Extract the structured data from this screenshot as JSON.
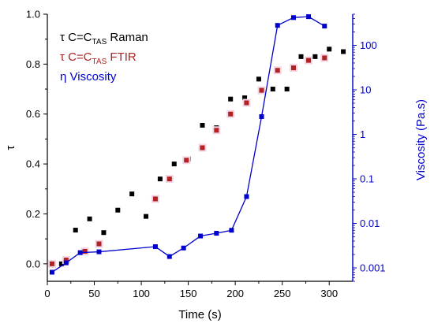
{
  "chart_data": {
    "type": "scatter",
    "xlabel": "Time (s)",
    "ylabel_left": "τ",
    "ylabel_right": "Viscosity (Pa.s)",
    "xlim": [
      0,
      325
    ],
    "ylim_left": [
      -0.07,
      1.0
    ],
    "ylim_right_log": [
      0.0005,
      500
    ],
    "x_ticks": [
      0,
      50,
      100,
      150,
      200,
      250,
      300
    ],
    "x_tick_labels": [
      "0",
      "50",
      "100",
      "150",
      "200",
      "250",
      "300"
    ],
    "y_left_ticks": [
      0.0,
      0.2,
      0.4,
      0.6,
      0.8,
      1.0
    ],
    "y_left_tick_labels": [
      "0.0",
      "0.2",
      "0.4",
      "0.6",
      "0.8",
      "1.0"
    ],
    "y_right_ticks": [
      0.001,
      0.01,
      0.1,
      1,
      10,
      100
    ],
    "y_right_tick_labels": [
      "0.001",
      "0.01",
      "0.1",
      "1",
      "10",
      "100"
    ],
    "legend_placement": "top-left",
    "legend": [
      {
        "prefix": "τ C=C",
        "sub": "TAS",
        "suffix": " Raman",
        "color": "#000000"
      },
      {
        "prefix": "τ C=C",
        "sub": "TAS",
        "suffix": " FTIR",
        "color": "#b22222"
      },
      {
        "prefix": "η Viscosity",
        "sub": "",
        "suffix": "",
        "color": "#0000cc"
      }
    ],
    "series": [
      {
        "name": "τ C=CTAS Raman",
        "axis": "left",
        "marker": "square",
        "color": "#000000",
        "x": [
          5,
          15,
          20,
          30,
          45,
          60,
          75,
          90,
          105,
          120,
          135,
          150,
          165,
          180,
          195,
          210,
          225,
          240,
          255,
          270,
          285,
          300,
          315
        ],
        "y": [
          0.0,
          0.0,
          0.02,
          0.135,
          0.18,
          0.125,
          0.215,
          0.28,
          0.19,
          0.34,
          0.4,
          0.42,
          0.555,
          0.545,
          0.66,
          0.665,
          0.74,
          0.7,
          0.7,
          0.83,
          0.83,
          0.86,
          0.85
        ]
      },
      {
        "name": "τ C=CTAS FTIR",
        "axis": "left",
        "marker": "square",
        "color": "#b22222",
        "x": [
          5,
          20,
          40,
          55,
          115,
          130,
          148,
          165,
          180,
          195,
          212,
          228,
          245,
          262,
          278,
          295
        ],
        "y": [
          0.0,
          0.015,
          0.05,
          0.08,
          0.26,
          0.34,
          0.415,
          0.465,
          0.535,
          0.6,
          0.645,
          0.695,
          0.775,
          0.785,
          0.815,
          0.825
        ]
      },
      {
        "name": "η Viscosity",
        "axis": "right_log",
        "marker": "square",
        "line": true,
        "color": "#0000cc",
        "x": [
          5,
          20,
          35,
          55,
          115,
          130,
          145,
          163,
          180,
          196,
          212,
          228,
          245,
          262,
          278,
          295
        ],
        "y": [
          0.0008,
          0.0013,
          0.0022,
          0.0023,
          0.003,
          0.0018,
          0.0028,
          0.0052,
          0.006,
          0.007,
          0.04,
          2.5,
          280,
          420,
          440,
          270
        ]
      }
    ]
  }
}
